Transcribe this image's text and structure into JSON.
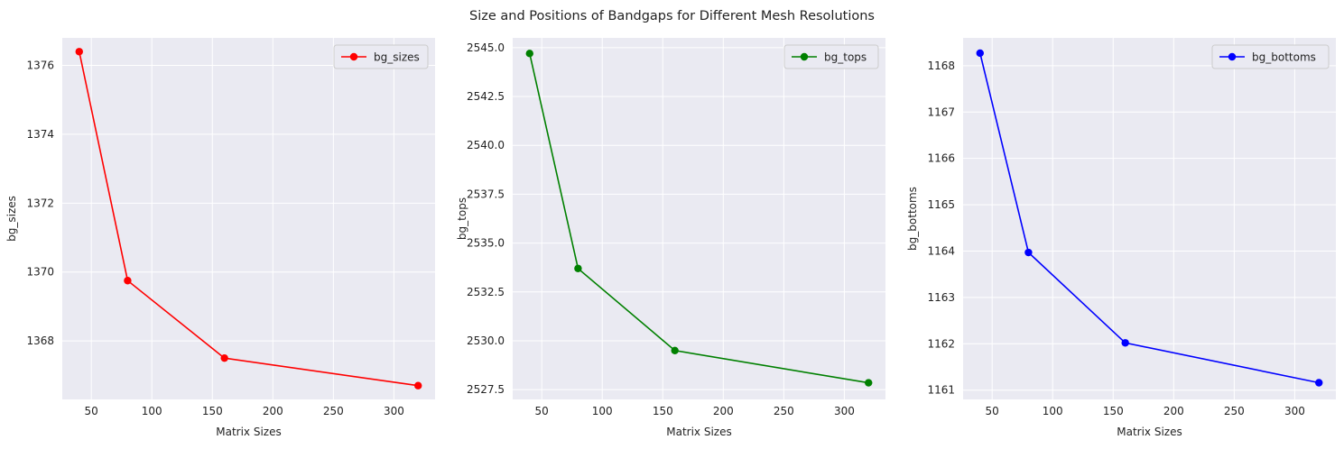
{
  "figure": {
    "suptitle": "Size and Positions of Bandgaps for Different Mesh Resolutions"
  },
  "chart_data": [
    {
      "type": "line",
      "x": [
        40,
        80,
        160,
        320
      ],
      "series": [
        {
          "name": "bg_sizes",
          "values": [
            1376.4,
            1369.75,
            1367.5,
            1366.7
          ],
          "color": "#ff0000"
        }
      ],
      "title": "",
      "xlabel": "Matrix Sizes",
      "ylabel": "bg_sizes",
      "xlim": [
        26,
        334
      ],
      "ylim": [
        1366.3,
        1376.8
      ],
      "xticks": [
        50,
        100,
        150,
        200,
        250,
        300
      ],
      "yticks": [
        1368,
        1370,
        1372,
        1374,
        1376
      ],
      "ytick_decimals": 0,
      "grid": true,
      "legend": "top-right"
    },
    {
      "type": "line",
      "x": [
        40,
        80,
        160,
        320
      ],
      "series": [
        {
          "name": "bg_tops",
          "values": [
            2544.7,
            2533.7,
            2529.5,
            2527.85
          ],
          "color": "#008000"
        }
      ],
      "title": "",
      "xlabel": "Matrix Sizes",
      "ylabel": "bg_tops",
      "xlim": [
        26,
        334
      ],
      "ylim": [
        2527.0,
        2545.5
      ],
      "xticks": [
        50,
        100,
        150,
        200,
        250,
        300
      ],
      "yticks": [
        2527.5,
        2530.0,
        2532.5,
        2535.0,
        2537.5,
        2540.0,
        2542.5,
        2545.0
      ],
      "ytick_decimals": 1,
      "grid": true,
      "legend": "top-right"
    },
    {
      "type": "line",
      "x": [
        40,
        80,
        160,
        320
      ],
      "series": [
        {
          "name": "bg_bottoms",
          "values": [
            1168.27,
            1163.97,
            1162.02,
            1161.16
          ],
          "color": "#0000ff"
        }
      ],
      "title": "",
      "xlabel": "Matrix Sizes",
      "ylabel": "bg_bottoms",
      "xlim": [
        26,
        334
      ],
      "ylim": [
        1160.8,
        1168.6
      ],
      "xticks": [
        50,
        100,
        150,
        200,
        250,
        300
      ],
      "yticks": [
        1161,
        1162,
        1163,
        1164,
        1165,
        1166,
        1167,
        1168
      ],
      "ytick_decimals": 0,
      "grid": true,
      "legend": "top-right"
    }
  ]
}
